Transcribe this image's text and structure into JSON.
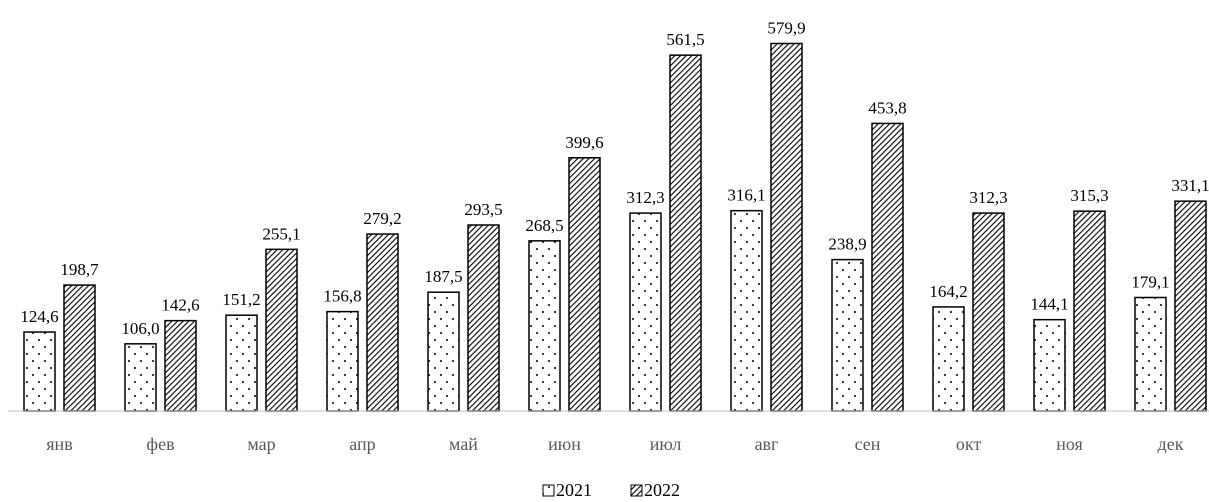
{
  "chart_data": {
    "type": "bar",
    "categories": [
      "янв",
      "фев",
      "мар",
      "апр",
      "май",
      "июн",
      "июл",
      "авг",
      "сен",
      "окт",
      "ноя",
      "дек"
    ],
    "series": [
      {
        "name": "2021",
        "pattern": "dots",
        "values": [
          124.6,
          106.0,
          151.2,
          156.8,
          187.5,
          268.5,
          312.3,
          316.1,
          238.9,
          164.2,
          144.1,
          179.1
        ],
        "labels": [
          "124,6",
          "106,0",
          "151,2",
          "156,8",
          "187,5",
          "268,5",
          "312,3",
          "316,1",
          "238,9",
          "164,2",
          "144,1",
          "179,1"
        ]
      },
      {
        "name": "2022",
        "pattern": "hatch",
        "values": [
          198.7,
          142.6,
          255.1,
          279.2,
          293.5,
          399.6,
          561.5,
          579.9,
          453.8,
          312.3,
          315.3,
          331.1
        ],
        "labels": [
          "198,7",
          "142,6",
          "255,1",
          "279,2",
          "293,5",
          "399,6",
          "561,5",
          "579,9",
          "453,8",
          "312,3",
          "315,3",
          "331,1"
        ]
      }
    ],
    "title": "",
    "xlabel": "",
    "ylabel": "",
    "ylim": [
      0,
      600
    ],
    "grid": false,
    "legend": "bottom-center",
    "colors": {
      "bar_fill": "#ffffff",
      "bar_stroke": "#000000",
      "axis": "#bfbfbf",
      "category_text": "#595959"
    }
  }
}
